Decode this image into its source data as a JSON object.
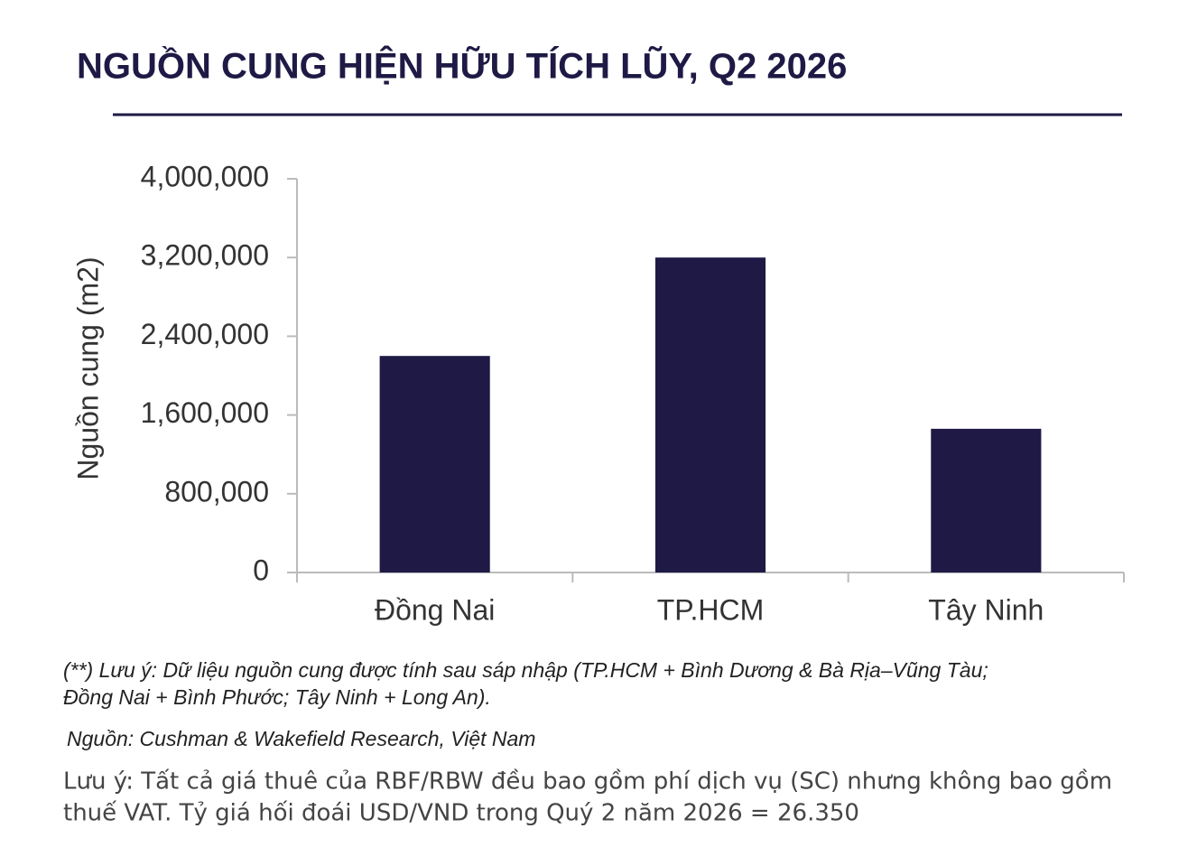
{
  "chart_data": {
    "type": "bar",
    "title": "NGUỒN CUNG HIỆN HỮU TÍCH LŨY, Q2 2026",
    "y_label": "Nguồn cung (m2)",
    "categories": [
      "Đồng Nai",
      "TP.HCM",
      "Tây Ninh"
    ],
    "values": [
      2200000,
      3200000,
      1460000
    ],
    "color": "#1e1a45",
    "ylim": [
      0,
      4000000
    ],
    "yticks": [
      0,
      {
        "value": 800000,
        "label": "800,000"
      },
      {
        "value": 1600000,
        "label": "1,600,000"
      },
      {
        "value": 2400000,
        "label": "2,400,000"
      },
      {
        "value": 3200000,
        "label": "3,200,000"
      },
      {
        "value": 4000000,
        "label": "4,000,000"
      }
    ],
    "grid": false
  },
  "notes": {
    "merger": [
      "(**) Lưu ý: Dữ liệu nguồn cung được tính sau sáp nhập (TP.HCM + Bình Dương & Bà Rịa–Vũng Tàu;",
      "Đồng Nai + Bình Phước; Tây Ninh + Long An)."
    ],
    "source": "Nguồn: Cushman & Wakefield Research, Việt Nam",
    "rent": [
      "Lưu ý: Tất cả giá thuê của RBF/RBW đều bao gồm phí dịch vụ (SC) nhưng không bao gồm",
      "thuế VAT. Tỷ giá hối đoái USD/VND trong Quý 2 năm 2026 = 26.350"
    ]
  }
}
